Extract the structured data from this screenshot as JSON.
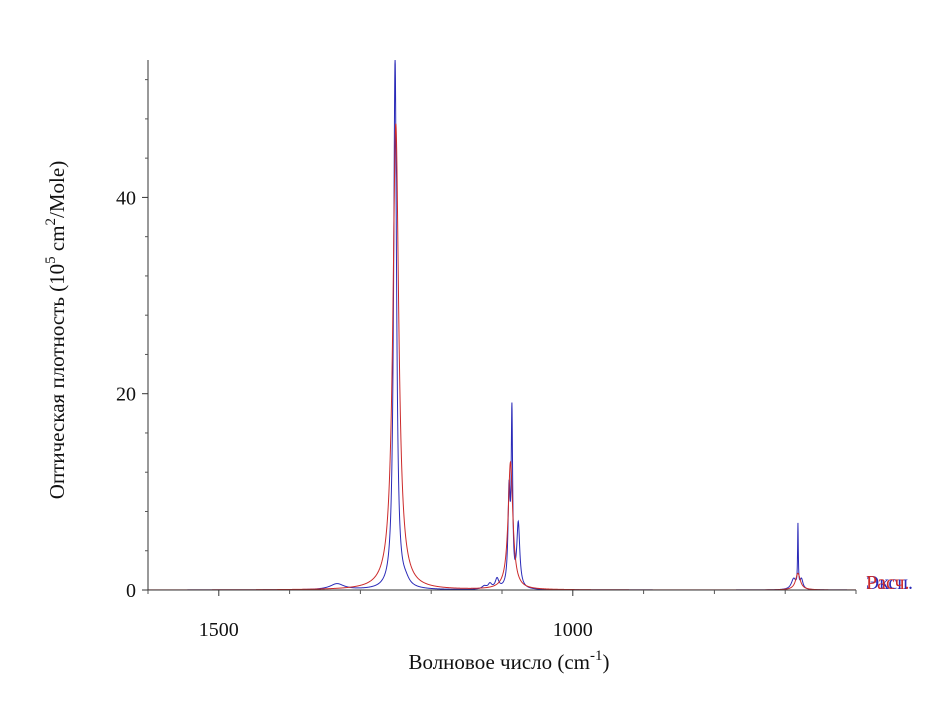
{
  "chart_data": {
    "type": "line",
    "xlabel": {
      "base": "Волновое число (cm",
      "sup": "-1",
      "tail": ")"
    },
    "ylabel": {
      "part1": "Оптическая плотность (10",
      "sup1": "5",
      "part2": " cm",
      "sup2": "2",
      "part3": "/Mole)"
    },
    "xlim": [
      1600,
      600
    ],
    "ylim": [
      0,
      54
    ],
    "x_ticks": [
      {
        "value": 1500,
        "label": "1500"
      },
      {
        "value": 1000,
        "label": "1000"
      }
    ],
    "x_minor_ticks": [
      1600,
      1400,
      1300,
      1200,
      1100,
      900,
      800,
      700,
      600
    ],
    "y_ticks": [
      {
        "value": 0,
        "label": "0"
      },
      {
        "value": 20,
        "label": "20"
      },
      {
        "value": 40,
        "label": "40"
      }
    ],
    "y_minor_ticks": [
      4,
      8,
      12,
      16,
      24,
      28,
      32,
      36,
      44,
      48,
      52
    ],
    "series": [
      {
        "name": "Эксп.",
        "color": "#2a2ab8",
        "peaks": [
          {
            "x": 1333,
            "h": 0.6,
            "w": 12
          },
          {
            "x": 1251,
            "h": 54,
            "w": 2.5
          },
          {
            "x": 1236,
            "h": 0.5,
            "w": 6
          },
          {
            "x": 1125,
            "h": 0.3,
            "w": 4
          },
          {
            "x": 1117,
            "h": 0.5,
            "w": 3
          },
          {
            "x": 1107,
            "h": 1.0,
            "w": 3
          },
          {
            "x": 1090,
            "h": 9.5,
            "w": 1.8
          },
          {
            "x": 1086,
            "h": 17,
            "w": 1.2
          },
          {
            "x": 1077,
            "h": 6.5,
            "w": 2.5
          },
          {
            "x": 688,
            "h": 1.1,
            "w": 4
          },
          {
            "x": 682,
            "h": 6.3,
            "w": 0.6
          },
          {
            "x": 677,
            "h": 1.0,
            "w": 2.5
          }
        ]
      },
      {
        "name": "Расч.",
        "color": "#cc2a2a",
        "peaks": [
          {
            "x": 1250,
            "h": 47.5,
            "w": 5
          },
          {
            "x": 1088,
            "h": 13,
            "w": 4
          },
          {
            "x": 682,
            "h": 1.7,
            "w": 4
          }
        ]
      }
    ]
  }
}
